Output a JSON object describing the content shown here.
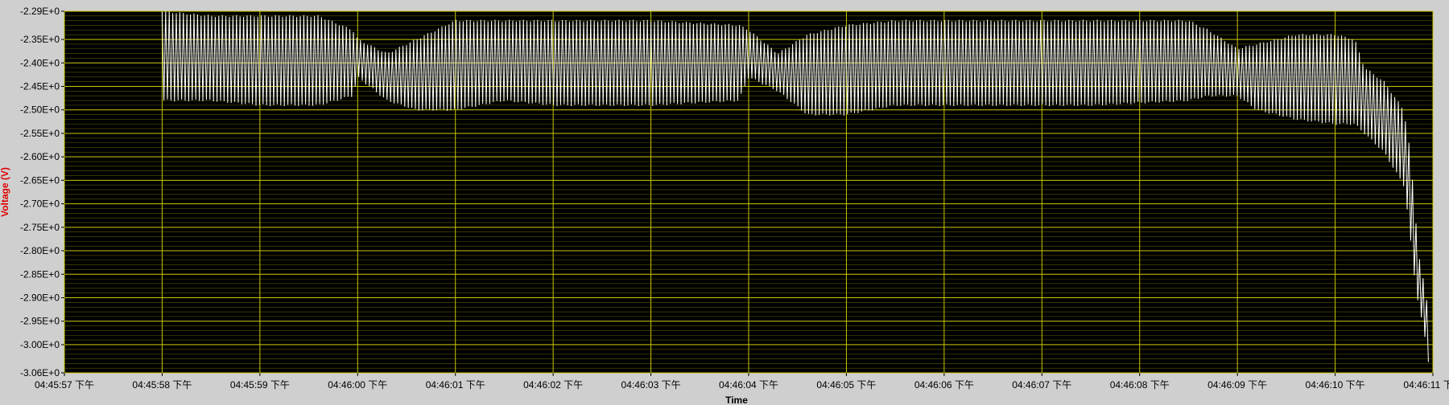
{
  "chart_data": {
    "type": "line",
    "title": "",
    "xlabel": "Time",
    "ylabel": "Voltage (V)",
    "ylim": [
      -3.06,
      -2.29
    ],
    "xlim_seconds": [
      0,
      14
    ],
    "grid": true,
    "colors": {
      "plot_bg": "#000000",
      "major_grid": "#c8c800",
      "minor_grid": "#5a5a00",
      "trace": "#ffffff",
      "ylabel": "#e00000",
      "frame": "#cfcfcf"
    },
    "y_ticks": [
      {
        "value": -2.29,
        "label": "-2.29E+0"
      },
      {
        "value": -2.35,
        "label": "-2.35E+0"
      },
      {
        "value": -2.4,
        "label": "-2.40E+0"
      },
      {
        "value": -2.45,
        "label": "-2.45E+0"
      },
      {
        "value": -2.5,
        "label": "-2.50E+0"
      },
      {
        "value": -2.55,
        "label": "-2.55E+0"
      },
      {
        "value": -2.6,
        "label": "-2.60E+0"
      },
      {
        "value": -2.65,
        "label": "-2.65E+0"
      },
      {
        "value": -2.7,
        "label": "-2.70E+0"
      },
      {
        "value": -2.75,
        "label": "-2.75E+0"
      },
      {
        "value": -2.8,
        "label": "-2.80E+0"
      },
      {
        "value": -2.85,
        "label": "-2.85E+0"
      },
      {
        "value": -2.9,
        "label": "-2.90E+0"
      },
      {
        "value": -2.95,
        "label": "-2.95E+0"
      },
      {
        "value": -3.0,
        "label": "-3.00E+0"
      },
      {
        "value": -3.06,
        "label": "-3.06E+0"
      }
    ],
    "x_ticks": [
      {
        "t": 0,
        "label": "04:45:57 下午"
      },
      {
        "t": 1,
        "label": "04:45:58 下午"
      },
      {
        "t": 2,
        "label": "04:45:59 下午"
      },
      {
        "t": 3,
        "label": "04:46:00 下午"
      },
      {
        "t": 4,
        "label": "04:46:01 下午"
      },
      {
        "t": 5,
        "label": "04:46:02 下午"
      },
      {
        "t": 6,
        "label": "04:46:03 下午"
      },
      {
        "t": 7,
        "label": "04:46:04 下午"
      },
      {
        "t": 8,
        "label": "04:46:05 下午"
      },
      {
        "t": 9,
        "label": "04:46:06 下午"
      },
      {
        "t": 10,
        "label": "04:46:07 下午"
      },
      {
        "t": 11,
        "label": "04:46:08 下午"
      },
      {
        "t": 12,
        "label": "04:46:09 下午"
      },
      {
        "t": 13,
        "label": "04:46:10 下午"
      },
      {
        "t": 14,
        "label": "04:46:11 下午"
      }
    ],
    "series": [
      {
        "style": "oscillating envelope (upper / lower bounds of the trace)",
        "envelope": [
          {
            "t": 1.0,
            "upper": -2.29,
            "lower": -2.48
          },
          {
            "t": 1.5,
            "upper": -2.3,
            "lower": -2.48
          },
          {
            "t": 2.0,
            "upper": -2.3,
            "lower": -2.49
          },
          {
            "t": 2.6,
            "upper": -2.3,
            "lower": -2.49
          },
          {
            "t": 2.95,
            "upper": -2.33,
            "lower": -2.47
          },
          {
            "t": 3.0,
            "upper": -2.35,
            "lower": -2.43
          },
          {
            "t": 3.3,
            "upper": -2.38,
            "lower": -2.48
          },
          {
            "t": 3.6,
            "upper": -2.35,
            "lower": -2.5
          },
          {
            "t": 4.0,
            "upper": -2.31,
            "lower": -2.5
          },
          {
            "t": 4.5,
            "upper": -2.31,
            "lower": -2.48
          },
          {
            "t": 5.0,
            "upper": -2.31,
            "lower": -2.49
          },
          {
            "t": 6.0,
            "upper": -2.31,
            "lower": -2.49
          },
          {
            "t": 6.9,
            "upper": -2.32,
            "lower": -2.48
          },
          {
            "t": 7.0,
            "upper": -2.33,
            "lower": -2.43
          },
          {
            "t": 7.3,
            "upper": -2.38,
            "lower": -2.46
          },
          {
            "t": 7.6,
            "upper": -2.34,
            "lower": -2.51
          },
          {
            "t": 8.0,
            "upper": -2.32,
            "lower": -2.51
          },
          {
            "t": 8.5,
            "upper": -2.31,
            "lower": -2.49
          },
          {
            "t": 9.5,
            "upper": -2.31,
            "lower": -2.49
          },
          {
            "t": 10.5,
            "upper": -2.31,
            "lower": -2.49
          },
          {
            "t": 11.5,
            "upper": -2.31,
            "lower": -2.48
          },
          {
            "t": 11.7,
            "upper": -2.33,
            "lower": -2.47
          },
          {
            "t": 12.0,
            "upper": -2.37,
            "lower": -2.47
          },
          {
            "t": 12.2,
            "upper": -2.36,
            "lower": -2.5
          },
          {
            "t": 12.6,
            "upper": -2.34,
            "lower": -2.52
          },
          {
            "t": 13.0,
            "upper": -2.34,
            "lower": -2.53
          },
          {
            "t": 13.2,
            "upper": -2.35,
            "lower": -2.53
          },
          {
            "t": 13.3,
            "upper": -2.41,
            "lower": -2.55
          },
          {
            "t": 13.5,
            "upper": -2.44,
            "lower": -2.59
          },
          {
            "t": 13.7,
            "upper": -2.5,
            "lower": -2.66
          },
          {
            "t": 13.75,
            "upper": -2.56,
            "lower": -2.73
          },
          {
            "t": 13.8,
            "upper": -2.67,
            "lower": -2.84
          },
          {
            "t": 13.85,
            "upper": -2.8,
            "lower": -2.91
          },
          {
            "t": 13.9,
            "upper": -2.86,
            "lower": -2.96
          },
          {
            "t": 13.97,
            "upper": -2.95,
            "lower": -3.06
          }
        ]
      }
    ]
  }
}
